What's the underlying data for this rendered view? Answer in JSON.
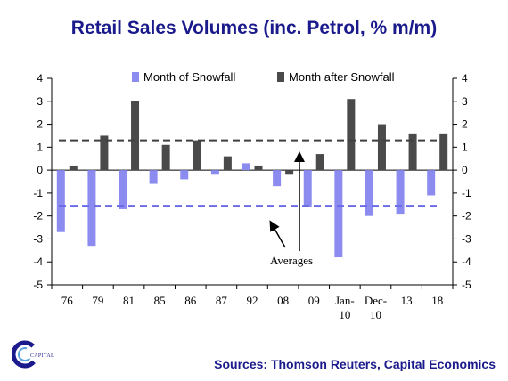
{
  "title": "Retail Sales Volumes (inc. Petrol, % m/m)",
  "sources": "Sources: Thomson Reuters, Capital Economics",
  "logo": {
    "text": "CAPITAL"
  },
  "chart_data": {
    "type": "bar",
    "categories": [
      "76",
      "79",
      "81",
      "85",
      "86",
      "87",
      "92",
      "08",
      "09",
      "Jan-\n10",
      "Dec-\n10",
      "13",
      "18"
    ],
    "series": [
      {
        "name": "Month of Snowfall",
        "color": "#8c8cf0",
        "values": [
          -2.7,
          -3.3,
          -1.7,
          -0.6,
          -0.4,
          -0.2,
          0.3,
          -0.7,
          -1.6,
          -3.8,
          -2.0,
          -1.9,
          -1.1
        ]
      },
      {
        "name": "Month after Snowfall",
        "color": "#4a4a4a",
        "values": [
          0.2,
          1.5,
          3.0,
          1.1,
          1.3,
          0.6,
          0.2,
          -0.2,
          0.7,
          3.1,
          2.0,
          1.6,
          1.6
        ]
      }
    ],
    "averages": {
      "snowfall": -1.55,
      "after": 1.3,
      "label": "Averages"
    },
    "ylim": [
      -5,
      4
    ],
    "yticks": [
      4,
      3,
      2,
      1,
      0,
      -1,
      -2,
      -3,
      -4,
      -5
    ],
    "yticks_right": [
      4,
      3,
      2,
      1,
      0,
      -1,
      -2,
      -3,
      -4,
      -5
    ],
    "grid": false,
    "legend": "top"
  }
}
